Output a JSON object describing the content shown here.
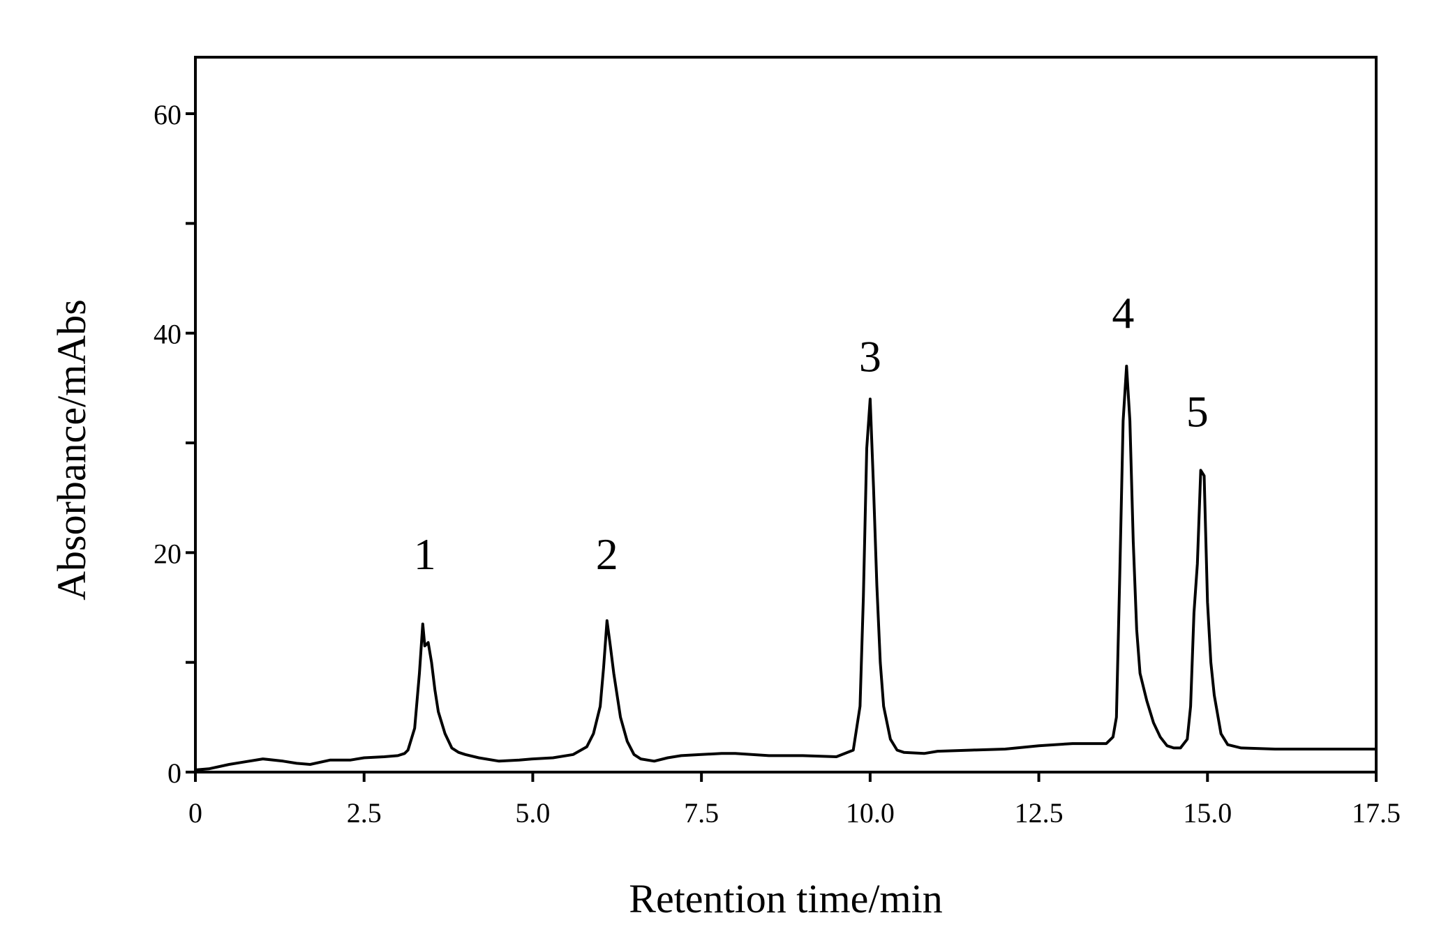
{
  "chart_data": {
    "type": "line",
    "xlabel": "Retention time/min",
    "ylabel": "Absorbance/mAbs",
    "xlim": [
      0,
      17.5
    ],
    "ylim": [
      0,
      60
    ],
    "x_ticks": [
      0,
      2.5,
      5.0,
      7.5,
      10.0,
      12.5,
      15.0,
      17.5
    ],
    "x_tick_labels": [
      "0",
      "2.5",
      "5.0",
      "7.5",
      "10.0",
      "12.5",
      "15.0",
      "17.5"
    ],
    "y_ticks": [
      0,
      10,
      20,
      30,
      40,
      50,
      60
    ],
    "y_tick_labels": [
      "0",
      "",
      "20",
      "",
      "40",
      "",
      "60"
    ],
    "grid": false,
    "line_color": "#000000",
    "series": [
      {
        "x": [
          0,
          0.2,
          0.5,
          0.7,
          1.0,
          1.3,
          1.5,
          1.7,
          2.0,
          2.3,
          2.5,
          2.8,
          3.0,
          3.1,
          3.15,
          3.25,
          3.32,
          3.37,
          3.4,
          3.45,
          3.5,
          3.55,
          3.6,
          3.7,
          3.8,
          3.9,
          4.0,
          4.2,
          4.5,
          4.8,
          5.0,
          5.3,
          5.6,
          5.8,
          5.9,
          6.0,
          6.05,
          6.1,
          6.15,
          6.2,
          6.3,
          6.4,
          6.5,
          6.6,
          6.8,
          7.0,
          7.2,
          7.5,
          7.8,
          8.0,
          8.5,
          9.0,
          9.5,
          9.75,
          9.85,
          9.9,
          9.95,
          10.0,
          10.05,
          10.1,
          10.15,
          10.2,
          10.3,
          10.4,
          10.5,
          10.8,
          11.0,
          11.5,
          12.0,
          12.5,
          13.0,
          13.5,
          13.6,
          13.65,
          13.7,
          13.75,
          13.8,
          13.85,
          13.9,
          13.95,
          14.0,
          14.1,
          14.2,
          14.3,
          14.4,
          14.5,
          14.6,
          14.7,
          14.75,
          14.8,
          14.85,
          14.9,
          14.95,
          15.0,
          15.05,
          15.1,
          15.2,
          15.3,
          15.5,
          16.0,
          17.0,
          17.5
        ],
        "y": [
          0.2,
          0.3,
          0.7,
          0.9,
          1.2,
          1.0,
          0.8,
          0.7,
          1.1,
          1.1,
          1.3,
          1.4,
          1.5,
          1.7,
          2.0,
          4.0,
          9.0,
          13.5,
          11.5,
          11.8,
          10.0,
          7.5,
          5.5,
          3.5,
          2.2,
          1.8,
          1.6,
          1.3,
          1.0,
          1.1,
          1.2,
          1.3,
          1.6,
          2.3,
          3.5,
          6.0,
          9.5,
          13.8,
          11.5,
          9.0,
          5.0,
          2.8,
          1.6,
          1.2,
          1.0,
          1.3,
          1.5,
          1.6,
          1.7,
          1.7,
          1.5,
          1.5,
          1.4,
          2.0,
          6.0,
          16.0,
          29.5,
          34.0,
          26.0,
          17.0,
          10.0,
          6.0,
          3.0,
          2.0,
          1.8,
          1.7,
          1.9,
          2.0,
          2.1,
          2.4,
          2.6,
          2.6,
          3.2,
          5.0,
          18.0,
          32.0,
          37.0,
          32.0,
          21.0,
          13.0,
          9.0,
          6.5,
          4.5,
          3.2,
          2.4,
          2.2,
          2.2,
          3.0,
          6.0,
          14.5,
          19.0,
          27.5,
          27.0,
          15.5,
          10.0,
          7.0,
          3.5,
          2.5,
          2.2,
          2.1,
          2.1,
          2.1
        ]
      }
    ],
    "annotations": [
      {
        "text": "1",
        "x": 3.4,
        "y": 18.5
      },
      {
        "text": "2",
        "x": 6.1,
        "y": 18.5
      },
      {
        "text": "3",
        "x": 10.0,
        "y": 36.5
      },
      {
        "text": "4",
        "x": 13.75,
        "y": 40.5
      },
      {
        "text": "5",
        "x": 14.85,
        "y": 31.5
      }
    ]
  }
}
